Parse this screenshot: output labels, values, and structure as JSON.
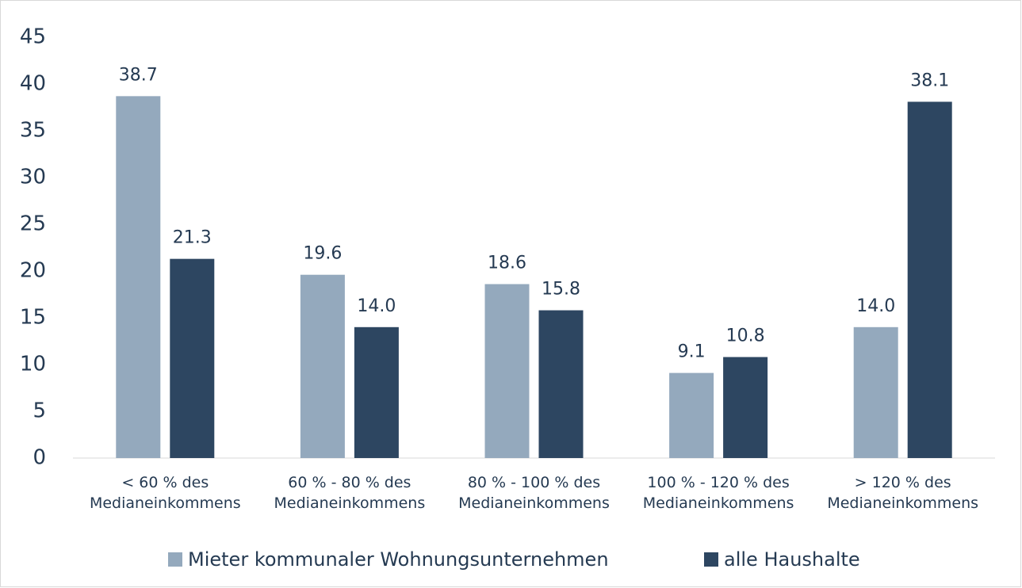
{
  "chart_data": {
    "type": "bar",
    "categories": [
      "< 60 % des Medianeinkommens",
      "60 % - 80 % des Medianeinkommens",
      "80 % - 100 % des Medianeinkommens",
      "100 % - 120 % des Medianeinkommens",
      "> 120 % des Medianeinkommens"
    ],
    "series": [
      {
        "name": "Mieter kommunaler Wohnungsunternehmen",
        "color": "#94a9bd",
        "values": [
          38.7,
          19.6,
          18.6,
          9.1,
          14
        ],
        "value_labels": [
          "38.7",
          "19.6",
          "18.6",
          "9.1",
          "14.0"
        ]
      },
      {
        "name": "alle Haushalte",
        "color": "#2d4661",
        "values": [
          21.3,
          14,
          15.8,
          10.8,
          38.1
        ],
        "value_labels": [
          "21.3",
          "14.0",
          "15.8",
          "10.8",
          "38.1"
        ]
      }
    ],
    "ylim": [
      0,
      45
    ],
    "yticks": [
      0,
      5,
      10,
      15,
      20,
      25,
      30,
      35,
      40,
      45
    ],
    "grid": false,
    "legend": "bottom"
  }
}
